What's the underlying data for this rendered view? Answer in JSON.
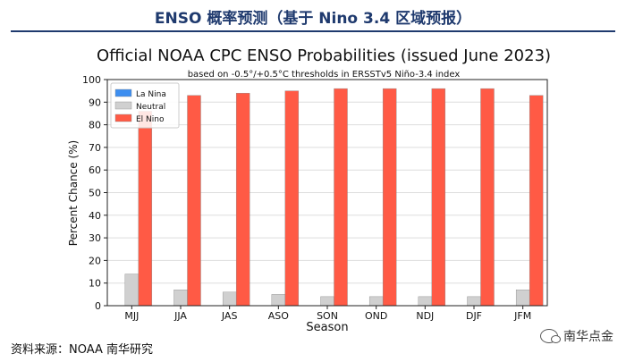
{
  "report": {
    "title": "ENSO 概率预测（基于 Nino 3.4 区域预报）",
    "source": "资料来源：NOAA 南华研究",
    "watermark": "南华点金"
  },
  "colors": {
    "la_nina": "#3d8ef0",
    "neutral": "#d0d0d0",
    "el_nino": "#ff5a45",
    "title_blue": "#1f3a6e"
  },
  "chart_data": {
    "type": "bar",
    "title": "Official NOAA CPC ENSO Probabilities (issued June 2023)",
    "subtitle": "based on -0.5°/+0.5°C thresholds in ERSSTv5 Niño-3.4 index",
    "xlabel": "Season",
    "ylabel": "Percent Chance (%)",
    "ylim": [
      0,
      100
    ],
    "yticks": [
      0,
      10,
      20,
      30,
      40,
      50,
      60,
      70,
      80,
      90,
      100
    ],
    "grid": true,
    "legend_position": "top-left",
    "categories": [
      "MJJ",
      "JJA",
      "JAS",
      "ASO",
      "SON",
      "OND",
      "NDJ",
      "DJF",
      "JFM"
    ],
    "series": [
      {
        "name": "La Nina",
        "color": "#3d8ef0",
        "values": [
          0,
          0,
          0,
          0,
          0,
          0,
          0,
          0,
          0
        ]
      },
      {
        "name": "Neutral",
        "color": "#d0d0d0",
        "values": [
          14,
          7,
          6,
          5,
          4,
          4,
          4,
          4,
          7
        ]
      },
      {
        "name": "El Nino",
        "color": "#ff5a45",
        "values": [
          86,
          93,
          94,
          95,
          96,
          96,
          96,
          96,
          93
        ]
      }
    ]
  }
}
